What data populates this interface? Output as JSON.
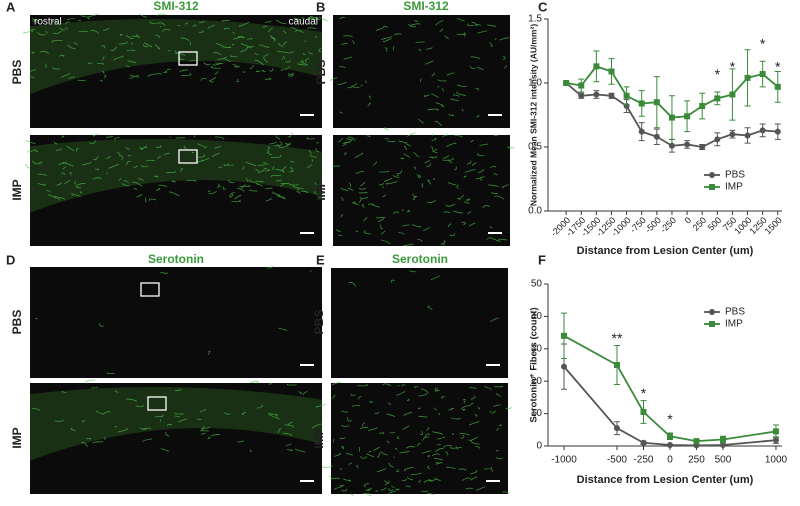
{
  "panels": {
    "letters": [
      "A",
      "B",
      "C",
      "D",
      "E",
      "F"
    ],
    "smi_title": "SMI-312",
    "serotonin_title": "Serotonin",
    "rostral": "rostral",
    "caudal": "caudal",
    "pbs": "PBS",
    "imp": "IMP"
  },
  "chart_data": [
    {
      "type": "line",
      "x_label": "Distance from Lesion Center (um)",
      "y_label": "Normalized Mean SMI-312 intensity (AU/mm²)",
      "x": [
        -2000,
        -1750,
        -1500,
        -1250,
        -1000,
        -750,
        -500,
        -250,
        0,
        250,
        500,
        750,
        1000,
        1250,
        1500
      ],
      "xlim": [
        -2300,
        1570
      ],
      "xticks": [
        -2000,
        -1750,
        -1500,
        -1250,
        -1000,
        -750,
        -500,
        -250,
        0,
        250,
        500,
        750,
        1000,
        1250,
        1500
      ],
      "ylim": [
        0,
        1.5
      ],
      "yticks": [
        {
          "value": 0,
          "label": "0.0"
        },
        0.5,
        {
          "value": 1,
          "label": "1.0"
        },
        1.5
      ],
      "legend": "lower right",
      "series": [
        {
          "name": "PBS",
          "color": "#555555",
          "marker": "circle",
          "values": [
            1.0,
            0.9,
            0.91,
            0.9,
            0.82,
            0.62,
            0.58,
            0.51,
            0.52,
            0.5,
            0.56,
            0.6,
            0.59,
            0.63,
            0.62
          ],
          "errors": [
            0.01,
            0.02,
            0.03,
            0.02,
            0.05,
            0.07,
            0.06,
            0.05,
            0.03,
            0.02,
            0.05,
            0.03,
            0.06,
            0.05,
            0.06
          ]
        },
        {
          "name": "IMP",
          "color": "#3a8a3a",
          "marker": "square",
          "values": [
            1.0,
            0.98,
            1.13,
            1.09,
            0.9,
            0.84,
            0.85,
            0.73,
            0.74,
            0.82,
            0.88,
            0.91,
            1.04,
            1.07,
            0.97
          ],
          "errors": [
            0.01,
            0.05,
            0.12,
            0.1,
            0.07,
            0.1,
            0.2,
            0.17,
            0.12,
            0.1,
            0.05,
            0.2,
            0.22,
            0.1,
            0.12
          ]
        }
      ],
      "annotations": [
        {
          "x": 500,
          "y": 1.06,
          "text": "*"
        },
        {
          "x": 750,
          "y": 1.12,
          "text": "*"
        },
        {
          "x": 1250,
          "y": 1.3,
          "text": "*"
        },
        {
          "x": 1500,
          "y": 1.12,
          "text": "*"
        }
      ]
    },
    {
      "type": "line",
      "x_label": "Distance from Lesion Center (um)",
      "y_label": "Serotonin⁺ Fibers (count)",
      "x": [
        -1000,
        -500,
        -250,
        0,
        250,
        500,
        1000
      ],
      "xlim": [
        -1151,
        1057
      ],
      "xticks": [
        -1000,
        -500,
        -250,
        0,
        250,
        500,
        1000
      ],
      "ylim": [
        0,
        50
      ],
      "yticks": [
        0,
        10,
        20,
        30,
        40,
        50
      ],
      "legend": "upper right",
      "series": [
        {
          "name": "PBS",
          "color": "#555555",
          "marker": "circle",
          "values": [
            24.5,
            5.5,
            1,
            0.3,
            0.2,
            0.3,
            1.8
          ],
          "errors": [
            7,
            2,
            0.5,
            0.2,
            0.2,
            0.2,
            1
          ]
        },
        {
          "name": "IMP",
          "color": "#3a8a3a",
          "marker": "square",
          "values": [
            34,
            25,
            10.5,
            3,
            1.5,
            2,
            4.5
          ],
          "errors": [
            7,
            6,
            3.5,
            1,
            0.7,
            1,
            2
          ]
        }
      ],
      "annotations": [
        {
          "x": -500,
          "y": 33,
          "text": "**"
        },
        {
          "x": -250,
          "y": 16,
          "text": "*"
        },
        {
          "x": 0,
          "y": 8,
          "text": "*"
        }
      ]
    }
  ]
}
